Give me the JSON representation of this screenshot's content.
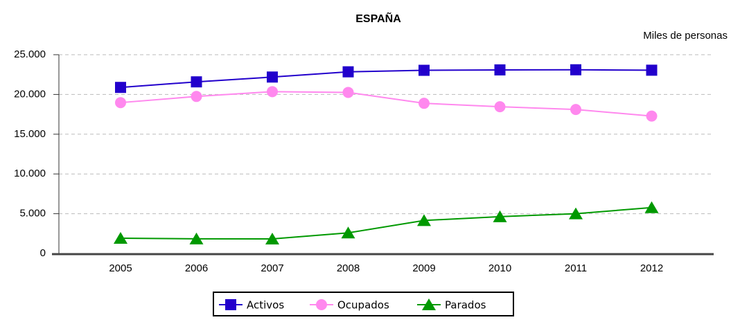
{
  "chart_data": {
    "type": "line",
    "title": "ESPAÑA",
    "unit_label": "Miles de personas",
    "categories": [
      "2005",
      "2006",
      "2007",
      "2008",
      "2009",
      "2010",
      "2011",
      "2012"
    ],
    "series": [
      {
        "name": "Activos",
        "color": "#2200cc",
        "marker": "square",
        "values": [
          20886,
          21585,
          22190,
          22848,
          23037,
          23089,
          23104,
          23051
        ]
      },
      {
        "name": "Ocupados",
        "color": "#ff88ee",
        "marker": "circle",
        "values": [
          18973,
          19748,
          20356,
          20258,
          18888,
          18457,
          18105,
          17282
        ]
      },
      {
        "name": "Parados",
        "color": "#009900",
        "marker": "triangle",
        "values": [
          1913,
          1837,
          1834,
          2591,
          4150,
          4632,
          4999,
          5769
        ]
      }
    ],
    "ylim": [
      0,
      25000
    ],
    "yticks": [
      0,
      {
        "value": 5000,
        "label": "5.000"
      },
      {
        "value": 10000,
        "label": "10.000"
      },
      {
        "value": 15000,
        "label": "15.000"
      },
      {
        "value": 20000,
        "label": "20.000"
      },
      {
        "value": 25000,
        "label": "25.000"
      }
    ],
    "grid": true,
    "legend": "bottom"
  }
}
